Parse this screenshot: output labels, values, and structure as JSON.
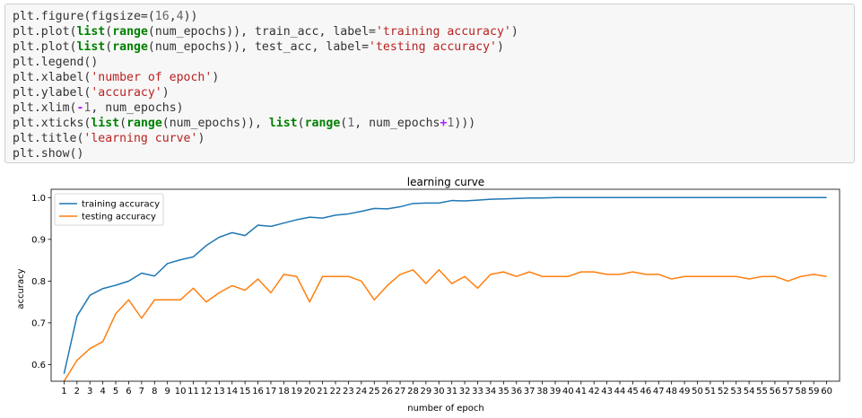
{
  "code_cell": {
    "lines": [
      [
        {
          "t": "plt.figure(figsize=(",
          "c": "t"
        },
        {
          "t": "16",
          "c": "n"
        },
        {
          "t": ",",
          "c": "t"
        },
        {
          "t": "4",
          "c": "n"
        },
        {
          "t": "))",
          "c": "t"
        }
      ],
      [
        {
          "t": "plt.plot(",
          "c": "t"
        },
        {
          "t": "list",
          "c": "b"
        },
        {
          "t": "(",
          "c": "t"
        },
        {
          "t": "range",
          "c": "b"
        },
        {
          "t": "(num_epochs)), train_acc, label=",
          "c": "t"
        },
        {
          "t": "'training accuracy'",
          "c": "s"
        },
        {
          "t": ")",
          "c": "t"
        }
      ],
      [
        {
          "t": "plt.plot(",
          "c": "t"
        },
        {
          "t": "list",
          "c": "b"
        },
        {
          "t": "(",
          "c": "t"
        },
        {
          "t": "range",
          "c": "b"
        },
        {
          "t": "(num_epochs)), test_acc, label=",
          "c": "t"
        },
        {
          "t": "'testing accuracy'",
          "c": "s"
        },
        {
          "t": ")",
          "c": "t"
        }
      ],
      [
        {
          "t": "plt.legend()",
          "c": "t"
        }
      ],
      [
        {
          "t": "plt.xlabel(",
          "c": "t"
        },
        {
          "t": "'number of epoch'",
          "c": "s"
        },
        {
          "t": ")",
          "c": "t"
        }
      ],
      [
        {
          "t": "plt.ylabel(",
          "c": "t"
        },
        {
          "t": "'accuracy'",
          "c": "s"
        },
        {
          "t": ")",
          "c": "t"
        }
      ],
      [
        {
          "t": "plt.xlim(",
          "c": "t"
        },
        {
          "t": "-",
          "c": "o"
        },
        {
          "t": "1",
          "c": "n"
        },
        {
          "t": ", num_epochs)",
          "c": "t"
        }
      ],
      [
        {
          "t": "plt.xticks(",
          "c": "t"
        },
        {
          "t": "list",
          "c": "b"
        },
        {
          "t": "(",
          "c": "t"
        },
        {
          "t": "range",
          "c": "b"
        },
        {
          "t": "(num_epochs)), ",
          "c": "t"
        },
        {
          "t": "list",
          "c": "b"
        },
        {
          "t": "(",
          "c": "t"
        },
        {
          "t": "range",
          "c": "b"
        },
        {
          "t": "(",
          "c": "t"
        },
        {
          "t": "1",
          "c": "n"
        },
        {
          "t": ", num_epochs",
          "c": "t"
        },
        {
          "t": "+",
          "c": "o"
        },
        {
          "t": "1",
          "c": "n"
        },
        {
          "t": ")))",
          "c": "t"
        }
      ],
      [
        {
          "t": "plt.title(",
          "c": "t"
        },
        {
          "t": "'learning curve'",
          "c": "s"
        },
        {
          "t": ")",
          "c": "t"
        }
      ],
      [
        {
          "t": "plt.show()",
          "c": "t"
        }
      ]
    ]
  },
  "chart_data": {
    "type": "line",
    "title": "learning curve",
    "xlabel": "number of epoch",
    "ylabel": "accuracy",
    "xlim": [
      -1,
      60
    ],
    "ylim": [
      0.56,
      1.02
    ],
    "yticks": [
      0.6,
      0.7,
      0.8,
      0.9,
      1.0
    ],
    "ytick_labels": [
      "0.6",
      "0.7",
      "0.8",
      "0.9",
      "1.0"
    ],
    "x": [
      0,
      1,
      2,
      3,
      4,
      5,
      6,
      7,
      8,
      9,
      10,
      11,
      12,
      13,
      14,
      15,
      16,
      17,
      18,
      19,
      20,
      21,
      22,
      23,
      24,
      25,
      26,
      27,
      28,
      29,
      30,
      31,
      32,
      33,
      34,
      35,
      36,
      37,
      38,
      39,
      40,
      41,
      42,
      43,
      44,
      45,
      46,
      47,
      48,
      49,
      50,
      51,
      52,
      53,
      54,
      55,
      56,
      57,
      58,
      59
    ],
    "xtick_labels": [
      "1",
      "2",
      "3",
      "4",
      "5",
      "6",
      "7",
      "8",
      "9",
      "10",
      "11",
      "12",
      "13",
      "14",
      "15",
      "16",
      "17",
      "18",
      "19",
      "20",
      "21",
      "22",
      "23",
      "24",
      "25",
      "26",
      "27",
      "28",
      "29",
      "30",
      "31",
      "32",
      "33",
      "34",
      "35",
      "36",
      "37",
      "38",
      "39",
      "40",
      "41",
      "42",
      "43",
      "44",
      "45",
      "46",
      "47",
      "48",
      "49",
      "50",
      "51",
      "52",
      "53",
      "54",
      "55",
      "56",
      "57",
      "58",
      "59",
      "60"
    ],
    "grid": false,
    "legend_position": "upper-left",
    "series": [
      {
        "name": "training accuracy",
        "color": "#1f77b4",
        "values": [
          0.578,
          0.716,
          0.766,
          0.782,
          0.79,
          0.8,
          0.819,
          0.812,
          0.842,
          0.851,
          0.858,
          0.885,
          0.905,
          0.916,
          0.909,
          0.934,
          0.931,
          0.939,
          0.947,
          0.953,
          0.951,
          0.958,
          0.961,
          0.967,
          0.974,
          0.973,
          0.978,
          0.986,
          0.987,
          0.987,
          0.993,
          0.992,
          0.994,
          0.996,
          0.997,
          0.998,
          0.999,
          0.999,
          1.0,
          1.0,
          1.0,
          1.0,
          1.0,
          1.0,
          1.0,
          1.0,
          1.0,
          1.0,
          1.0,
          1.0,
          1.0,
          1.0,
          1.0,
          1.0,
          1.0,
          1.0,
          1.0,
          1.0,
          1.0,
          1.0
        ]
      },
      {
        "name": "testing accuracy",
        "color": "#ff7f0e",
        "values": [
          0.56,
          0.61,
          0.638,
          0.655,
          0.722,
          0.755,
          0.711,
          0.755,
          0.755,
          0.755,
          0.783,
          0.75,
          0.772,
          0.789,
          0.778,
          0.805,
          0.772,
          0.816,
          0.811,
          0.75,
          0.811,
          0.811,
          0.811,
          0.8,
          0.755,
          0.789,
          0.816,
          0.827,
          0.794,
          0.827,
          0.794,
          0.811,
          0.783,
          0.816,
          0.822,
          0.811,
          0.822,
          0.811,
          0.811,
          0.811,
          0.822,
          0.822,
          0.816,
          0.816,
          0.822,
          0.816,
          0.816,
          0.805,
          0.811,
          0.811,
          0.811,
          0.811,
          0.811,
          0.805,
          0.811,
          0.811,
          0.8,
          0.811,
          0.816,
          0.811
        ]
      }
    ]
  }
}
